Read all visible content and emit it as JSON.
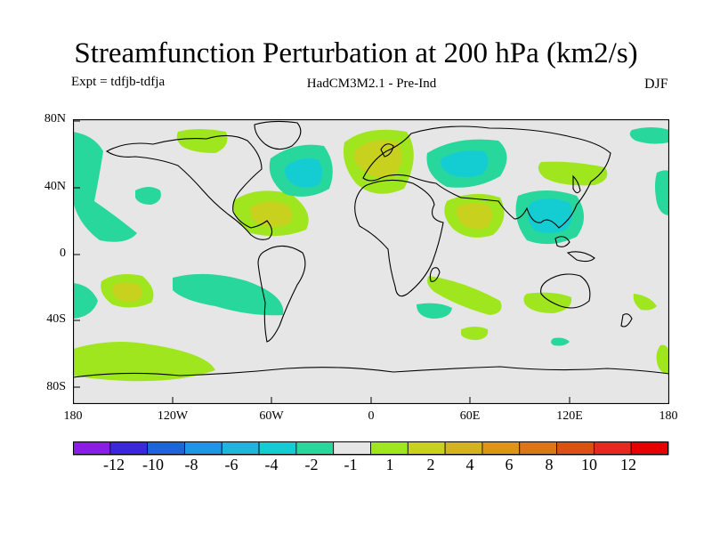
{
  "title": "Streamfunction Perturbation at 200 hPa (km2/s)",
  "expt_label": "Expt = tdfjb-tdfja",
  "model_label": "HadCM3M2.1 - Pre-Ind",
  "season_label": "DJF",
  "map": {
    "background_color": "#e6e6e6",
    "lat_ticks": [
      "80N",
      "40N",
      "0",
      "40S",
      "80S"
    ],
    "lon_ticks": [
      "180",
      "120W",
      "60W",
      "0",
      "60E",
      "120E",
      "180"
    ]
  },
  "colorbar": {
    "colors": [
      "#8a1ee6",
      "#3c28dc",
      "#1e64dc",
      "#1e96e6",
      "#1eb4dc",
      "#14cdd2",
      "#28d79b",
      "#e6e6e6",
      "#a0e61e",
      "#c8d21e",
      "#d2b41e",
      "#dc9614",
      "#dc7814",
      "#dc5014",
      "#e6281e",
      "#e60000"
    ],
    "labels": [
      "-12",
      "-10",
      "-8",
      "-6",
      "-4",
      "-2",
      "-1",
      "1",
      "2",
      "4",
      "6",
      "8",
      "10",
      "12"
    ]
  }
}
